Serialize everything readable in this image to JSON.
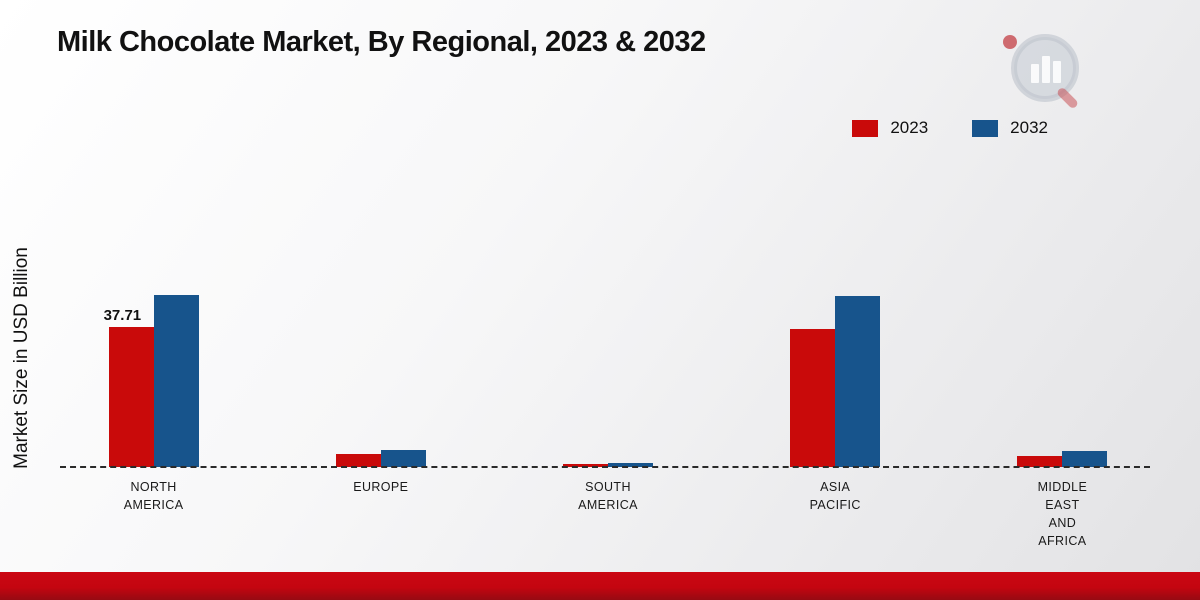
{
  "page": {
    "title": "Milk Chocolate Market, By Regional, 2023 & 2032",
    "ylabel": "Market Size in USD Billion"
  },
  "legend": [
    {
      "label": "2023",
      "color": "#c90a0a"
    },
    {
      "label": "2032",
      "color": "#17548c"
    }
  ],
  "chart_data": {
    "type": "bar",
    "title": "Milk Chocolate Market, By Regional, 2023 & 2032",
    "xlabel": "",
    "ylabel": "Market Size in USD Billion",
    "ylim": [
      0,
      50
    ],
    "grid": false,
    "baseline": "dashed",
    "legend_position": "top-right",
    "categories": [
      "NORTH\nAMERICA",
      "EUROPE",
      "SOUTH\nAMERICA",
      "ASIA\nPACIFIC",
      "MIDDLE\nEAST\nAND\nAFRICA"
    ],
    "series": [
      {
        "name": "2023",
        "color": "#c90a0a",
        "values": [
          37.71,
          3.4,
          0.7,
          37.2,
          3.1
        ]
      },
      {
        "name": "2032",
        "color": "#17548c",
        "values": [
          46.4,
          4.5,
          1.1,
          46.2,
          4.2
        ]
      }
    ],
    "data_labels": [
      {
        "series": 0,
        "category": 0,
        "text": "37.71"
      }
    ]
  }
}
